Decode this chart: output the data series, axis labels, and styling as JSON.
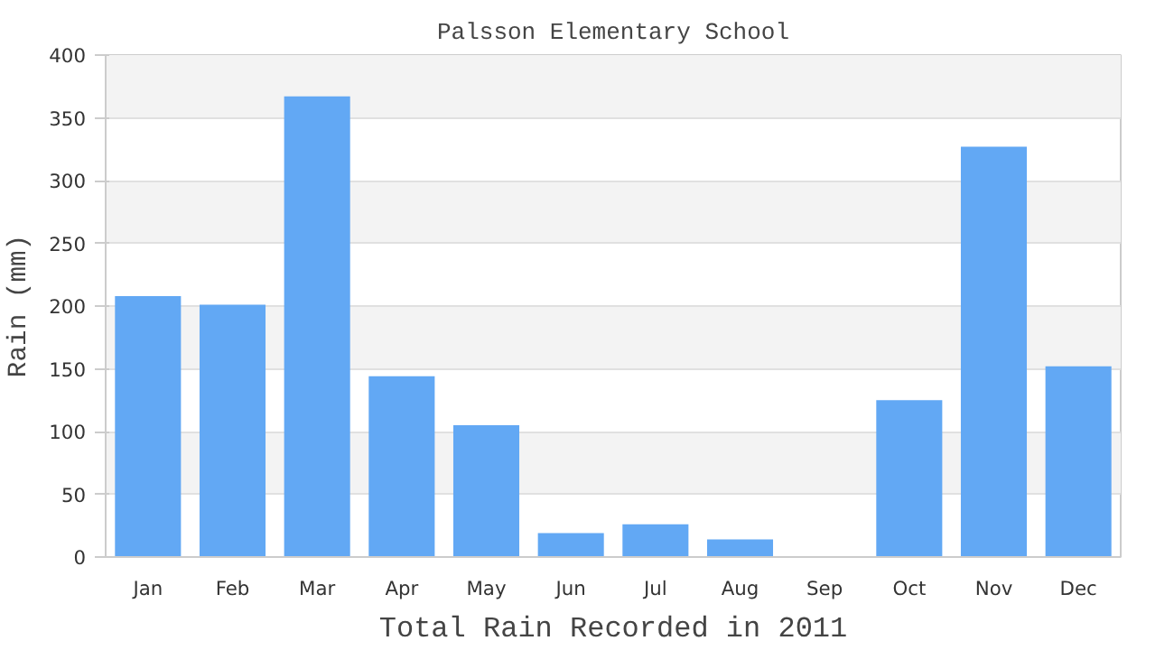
{
  "chart_data": {
    "type": "bar",
    "title": "Palsson Elementary School",
    "xlabel": "Total Rain Recorded in 2011",
    "ylabel": "Rain (mm)",
    "categories": [
      "Jan",
      "Feb",
      "Mar",
      "Apr",
      "May",
      "Jun",
      "Jul",
      "Aug",
      "Sep",
      "Oct",
      "Nov",
      "Dec"
    ],
    "values": [
      208,
      201,
      367,
      144,
      105,
      19,
      26,
      14,
      0,
      125,
      327,
      152
    ],
    "color": "#62a8f4",
    "ylim": [
      0,
      400
    ],
    "yticks": [
      0,
      50,
      100,
      150,
      200,
      250,
      300,
      350,
      400
    ],
    "grid": "y"
  }
}
